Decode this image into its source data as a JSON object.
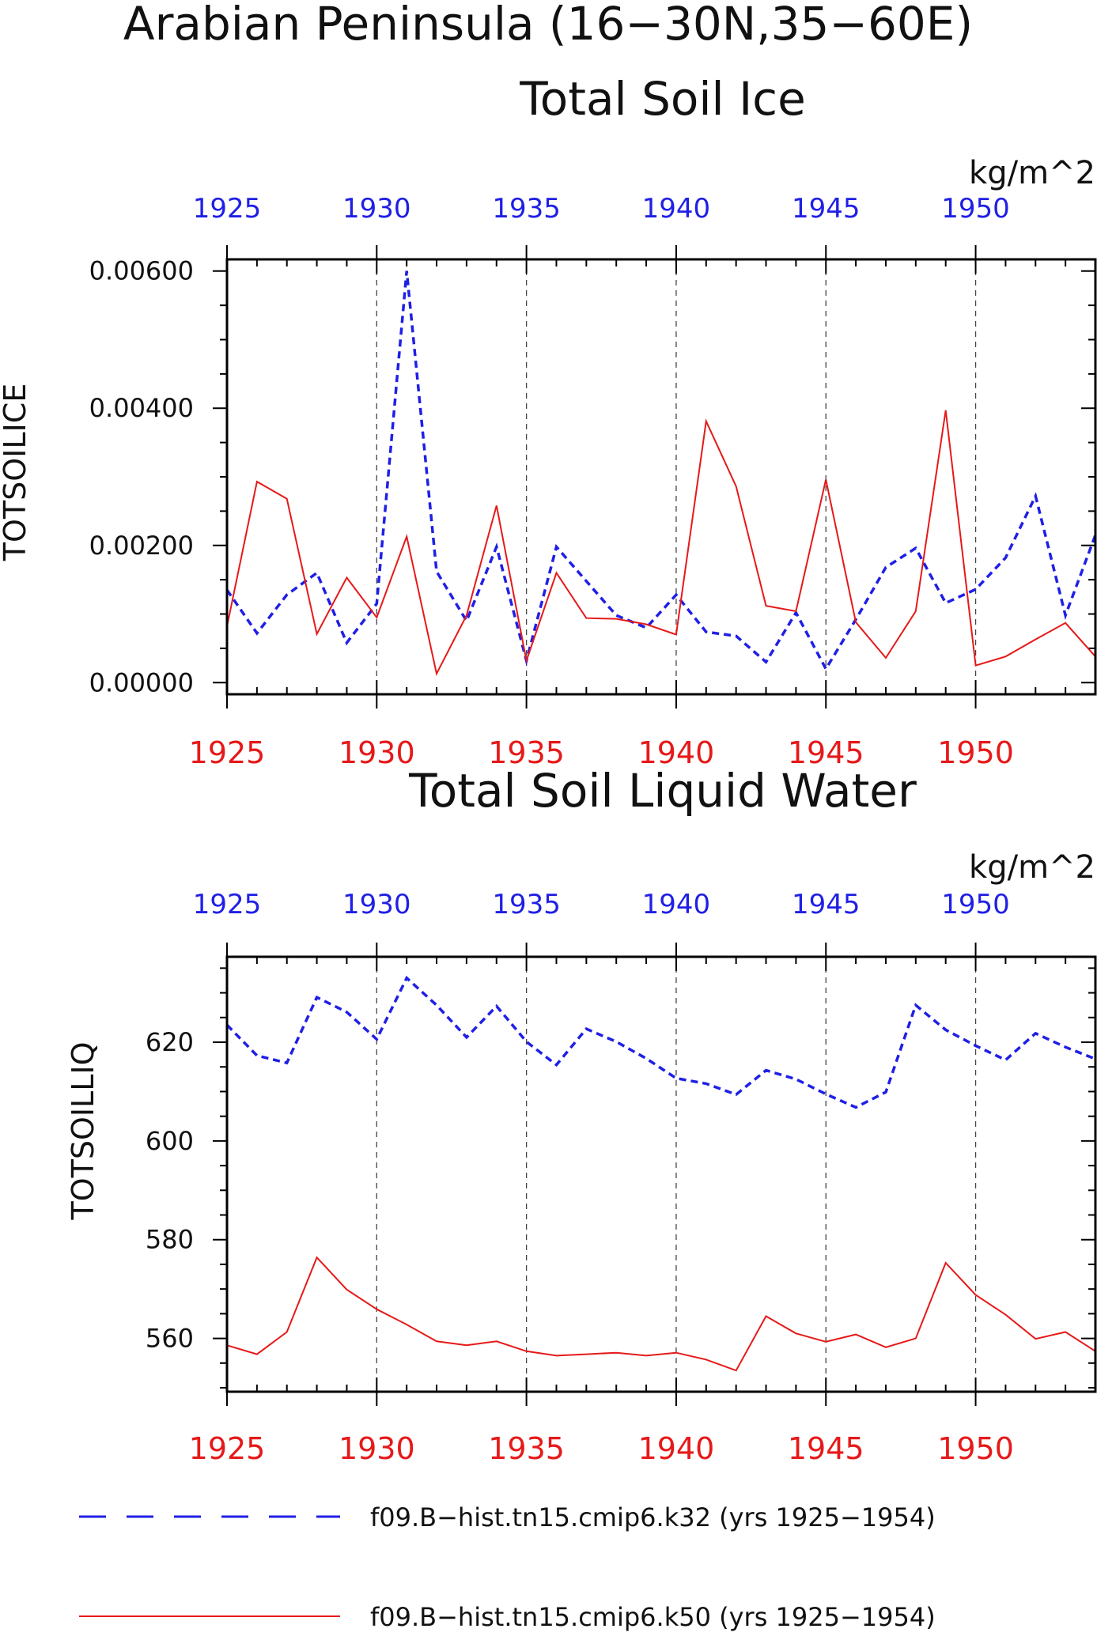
{
  "figure": {
    "title": "Arabian Peninsula (16−30N,35−60E)"
  },
  "colors": {
    "series_k32": "#1f1fe6",
    "series_k50": "#e61919",
    "grid": "#444444",
    "axes": "#000000"
  },
  "legend": {
    "placement": "bottom",
    "items": [
      {
        "label": "f09.B−hist.tn15.cmip6.k32 (yrs 1925−1954)",
        "style": "dashed",
        "color": "#1f1fe6"
      },
      {
        "label": "f09.B−hist.tn15.cmip6.k50 (yrs 1925−1954)",
        "style": "solid",
        "color": "#e61919"
      }
    ]
  },
  "chart_data": [
    {
      "type": "line",
      "title": "Total Soil Ice",
      "units": "kg/m^2",
      "ylabel": "TOTSOILICE",
      "xlim": [
        1925,
        1954
      ],
      "ylim": [
        -0.00017,
        0.00617
      ],
      "yticks": [
        0,
        0.002,
        0.004,
        0.006
      ],
      "ytick_labels": [
        "0.00000",
        "0.00200",
        "0.00400",
        "0.00600"
      ],
      "xticks": [
        1925,
        1930,
        1935,
        1940,
        1945,
        1950
      ],
      "xtick_labels": [
        "1925",
        "1930",
        "1935",
        "1940",
        "1945",
        "1950"
      ],
      "grid": "vertical dashed at labeled years",
      "x": [
        1925,
        1926,
        1927,
        1928,
        1929,
        1930,
        1931,
        1932,
        1933,
        1934,
        1935,
        1936,
        1937,
        1938,
        1939,
        1940,
        1941,
        1942,
        1943,
        1944,
        1945,
        1946,
        1947,
        1948,
        1949,
        1950,
        1951,
        1952,
        1953,
        1954
      ],
      "series": [
        {
          "name": "f09.B−hist.tn15.cmip6.k32 (yrs 1925−1954)",
          "style": "dashed",
          "color": "#1f1fe6",
          "values": [
            0.00135,
            0.00072,
            0.00128,
            0.0016,
            0.00058,
            0.00115,
            0.006,
            0.00162,
            0.0009,
            0.00198,
            0.00032,
            0.00198,
            0.00148,
            0.00098,
            0.0008,
            0.00128,
            0.00074,
            0.00068,
            0.0003,
            0.00102,
            0.0002,
            0.00092,
            0.00168,
            0.00196,
            0.00116,
            0.00136,
            0.00182,
            0.00272,
            0.00098,
            0.00215
          ]
        },
        {
          "name": "f09.B−hist.tn15.cmip6.k50 (yrs 1925−1954)",
          "style": "solid",
          "color": "#e61919",
          "values": [
            0.00082,
            0.00293,
            0.00268,
            0.00071,
            0.00153,
            0.00095,
            0.00213,
            0.00013,
            0.00098,
            0.00258,
            0.00032,
            0.0016,
            0.00094,
            0.00093,
            0.00085,
            0.0007,
            0.00381,
            0.00286,
            0.00112,
            0.00104,
            0.00296,
            0.00088,
            0.00036,
            0.00104,
            0.00397,
            0.00025,
            0.00038,
            0.00063,
            0.00087,
            0.00038
          ]
        }
      ]
    },
    {
      "type": "line",
      "title": "Total Soil Liquid Water",
      "units": "kg/m^2",
      "ylabel": "TOTSOILLIQ",
      "xlim": [
        1925,
        1954
      ],
      "ylim": [
        549.2,
        637.3
      ],
      "yticks": [
        560,
        580,
        600,
        620
      ],
      "ytick_labels": [
        "560",
        "580",
        "600",
        "620"
      ],
      "xticks": [
        1925,
        1930,
        1935,
        1940,
        1945,
        1950
      ],
      "xtick_labels": [
        "1925",
        "1930",
        "1935",
        "1940",
        "1945",
        "1950"
      ],
      "grid": "vertical dashed at labeled years",
      "x": [
        1925,
        1926,
        1927,
        1928,
        1929,
        1930,
        1931,
        1932,
        1933,
        1934,
        1935,
        1936,
        1937,
        1938,
        1939,
        1940,
        1941,
        1942,
        1943,
        1944,
        1945,
        1946,
        1947,
        1948,
        1949,
        1950,
        1951,
        1952,
        1953,
        1954
      ],
      "series": [
        {
          "name": "f09.B−hist.tn15.cmip6.k32 (yrs 1925−1954)",
          "style": "dashed",
          "color": "#1f1fe6",
          "values": [
            623.5,
            617.3,
            615.8,
            629.1,
            626.1,
            620.6,
            633.0,
            627.5,
            621.0,
            627.3,
            620.1,
            615.4,
            622.7,
            620.1,
            616.7,
            612.7,
            611.6,
            609.4,
            614.3,
            612.5,
            609.5,
            606.8,
            609.9,
            627.5,
            622.5,
            619.3,
            616.4,
            621.8,
            619.0,
            616.6
          ]
        },
        {
          "name": "f09.B−hist.tn15.cmip6.k50 (yrs 1925−1954)",
          "style": "solid",
          "color": "#e61919",
          "values": [
            558.6,
            556.8,
            561.3,
            576.4,
            569.9,
            565.9,
            562.8,
            559.4,
            558.6,
            559.4,
            557.4,
            556.5,
            556.8,
            557.1,
            556.5,
            557.1,
            555.7,
            553.5,
            564.5,
            561.0,
            559.3,
            560.8,
            558.2,
            560.0,
            575.3,
            568.8,
            564.8,
            559.9,
            561.3,
            557.4
          ]
        }
      ]
    }
  ]
}
